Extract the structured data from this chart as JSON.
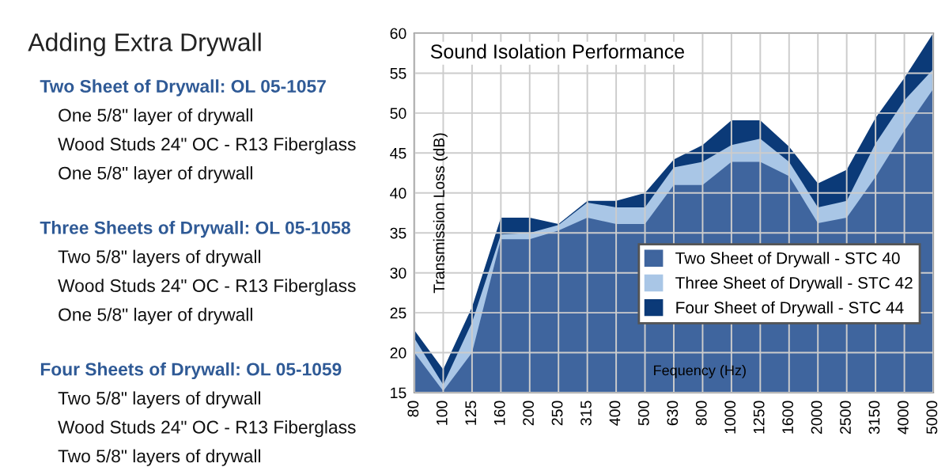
{
  "chart_data": [
    {
      "type": "other",
      "title": "Adding Extra Drywall",
      "annotations": [
        "Two Sheet of Drywall: OL 05-1057",
        "One 5/8\" layer of drywall",
        "Wood Studs 24\" OC - R13 Fiberglass",
        "One 5/8\" layer of drywall",
        "Three Sheets of Drywall: OL 05-1058",
        "Two 5/8\" layers of drywall",
        "Wood Studs 24\" OC - R13 Fiberglass",
        "One 5/8\" layer of drywall",
        "Four Sheets of Drywall: OL 05-1059",
        "Two 5/8\" layers of drywall",
        "Wood Studs 24\" OC - R13 Fiberglass",
        "Two 5/8\" layers of drywall"
      ]
    },
    {
      "type": "area",
      "title": "Sound Isolation Performance",
      "xlabel": "Fequency (Hz)",
      "ylabel": "Transmission Loss (dB)",
      "categories": [
        "80",
        "100",
        "125",
        "160",
        "200",
        "250",
        "315",
        "400",
        "500",
        "630",
        "800",
        "1000",
        "1250",
        "1600",
        "2000",
        "2500",
        "3150",
        "4000",
        "5000"
      ],
      "series": [
        {
          "name": "Four Sheet of Drywall - STC 44",
          "color": "#0b3a78",
          "values": [
            22.8,
            17.9,
            25.7,
            36.9,
            36.9,
            36.1,
            39,
            39,
            40,
            44.2,
            46,
            49.1,
            49.1,
            45.8,
            41.2,
            42.9,
            49.4,
            54.4,
            60
          ]
        },
        {
          "name": "Three Sheet of Drywall - STC 42",
          "color": "#a9c6e6",
          "values": [
            21.8,
            16,
            23.8,
            34.8,
            35,
            36,
            38.8,
            38.2,
            38.2,
            43.2,
            43.9,
            46,
            46.8,
            43.9,
            38.2,
            39,
            46.2,
            51.6,
            55.5
          ]
        },
        {
          "name": "Two Sheet of Drywall - STC 40",
          "color": "#3f659e",
          "values": [
            20,
            15.2,
            20,
            34.2,
            34.2,
            35.3,
            36.9,
            36.1,
            36.1,
            41,
            41,
            43.9,
            43.9,
            42.1,
            36.2,
            36.9,
            42,
            47.8,
            53
          ]
        }
      ],
      "ylim": [
        15,
        60
      ],
      "yticks": [
        15,
        20,
        25,
        30,
        35,
        40,
        45,
        50,
        55,
        60
      ],
      "grid": true,
      "legend": "bottom right"
    }
  ]
}
